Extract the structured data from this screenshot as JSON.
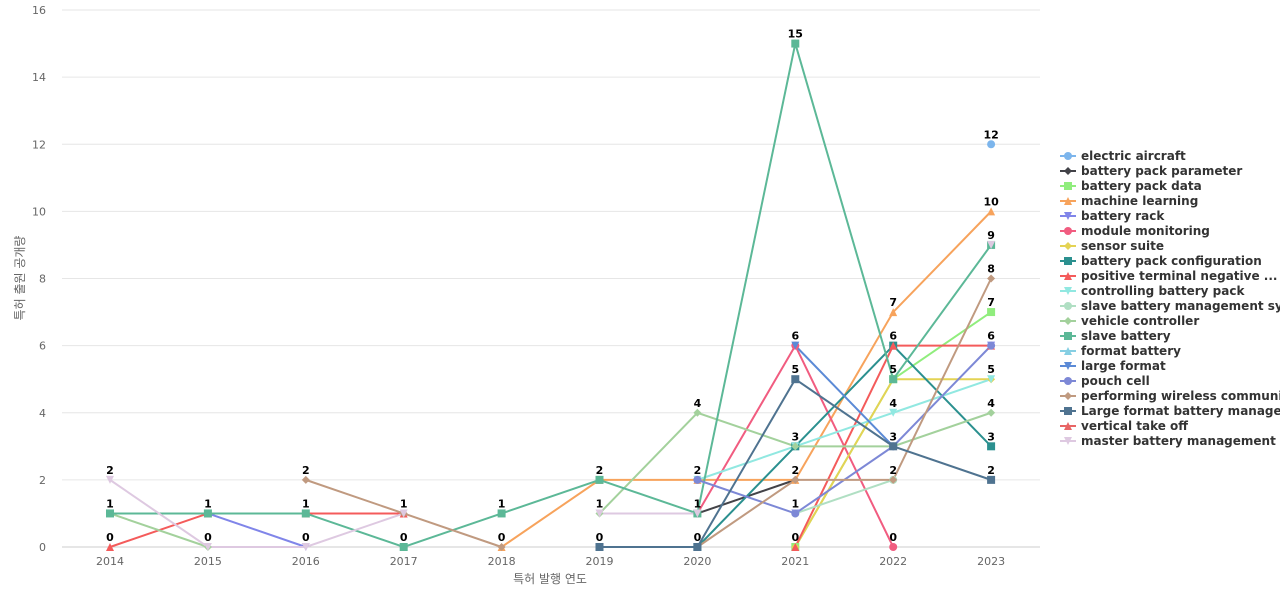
{
  "chart_data": {
    "type": "line",
    "title": "",
    "xlabel": "특허 발행 연도",
    "ylabel": "특허 출원 공개량",
    "categories": [
      "2014",
      "2015",
      "2016",
      "2017",
      "2018",
      "2019",
      "2020",
      "2021",
      "2022",
      "2023"
    ],
    "ylim": [
      0,
      16
    ],
    "yticks": [
      0,
      2,
      4,
      6,
      8,
      10,
      12,
      14,
      16
    ],
    "grid": true,
    "legend_position": "right",
    "series": [
      {
        "name": "electric aircraft",
        "color": "#7cb5ec",
        "marker": "circle",
        "values": [
          null,
          null,
          null,
          null,
          null,
          null,
          null,
          null,
          null,
          12
        ]
      },
      {
        "name": "battery pack parameter",
        "color": "#434348",
        "marker": "diamond",
        "values": [
          null,
          null,
          null,
          null,
          null,
          null,
          1,
          2,
          null,
          null
        ]
      },
      {
        "name": "battery pack data",
        "color": "#90ed7d",
        "marker": "square",
        "values": [
          null,
          null,
          null,
          null,
          null,
          null,
          null,
          0,
          5,
          7
        ]
      },
      {
        "name": "machine learning",
        "color": "#f7a35c",
        "marker": "triangle",
        "values": [
          null,
          null,
          null,
          null,
          0,
          2,
          2,
          2,
          7,
          10
        ]
      },
      {
        "name": "battery rack",
        "color": "#8085e9",
        "marker": "triangle-down",
        "values": [
          null,
          1,
          0,
          null,
          null,
          null,
          null,
          1,
          null,
          6
        ]
      },
      {
        "name": "module monitoring",
        "color": "#f15c80",
        "marker": "circle",
        "values": [
          null,
          null,
          null,
          null,
          null,
          null,
          1,
          6,
          0,
          null
        ]
      },
      {
        "name": "sensor suite",
        "color": "#e4d354",
        "marker": "diamond",
        "values": [
          null,
          null,
          null,
          null,
          null,
          null,
          null,
          0,
          5,
          5
        ]
      },
      {
        "name": "battery pack configuration",
        "color": "#2b908f",
        "marker": "square",
        "values": [
          null,
          null,
          null,
          null,
          null,
          null,
          0,
          3,
          6,
          3
        ]
      },
      {
        "name": "positive terminal negative ...",
        "color": "#f45b5b",
        "marker": "triangle",
        "values": [
          0,
          1,
          1,
          1,
          null,
          null,
          null,
          0,
          6,
          6
        ]
      },
      {
        "name": "controlling battery pack",
        "color": "#91e8e1",
        "marker": "triangle-down",
        "values": [
          null,
          null,
          null,
          null,
          null,
          null,
          2,
          3,
          4,
          5
        ]
      },
      {
        "name": "slave battery management sy...",
        "color": "#b0dfc3",
        "marker": "circle",
        "values": [
          null,
          null,
          null,
          null,
          null,
          null,
          null,
          1,
          2,
          null
        ]
      },
      {
        "name": "vehicle controller",
        "color": "#a3d19c",
        "marker": "diamond",
        "values": [
          1,
          0,
          null,
          null,
          null,
          1,
          4,
          3,
          3,
          4
        ]
      },
      {
        "name": "slave battery",
        "color": "#5cb897",
        "marker": "square",
        "values": [
          1,
          1,
          1,
          0,
          1,
          2,
          1,
          15,
          5,
          9
        ]
      },
      {
        "name": "format battery",
        "color": "#86cfe3",
        "marker": "triangle",
        "values": [
          null,
          null,
          null,
          null,
          null,
          null,
          null,
          null,
          null,
          null
        ]
      },
      {
        "name": "large format",
        "color": "#5b8ad6",
        "marker": "triangle-down",
        "values": [
          null,
          null,
          null,
          null,
          null,
          null,
          null,
          6,
          3,
          null
        ]
      },
      {
        "name": "pouch cell",
        "color": "#7d88d6",
        "marker": "circle",
        "values": [
          null,
          null,
          null,
          null,
          null,
          null,
          2,
          1,
          3,
          6
        ]
      },
      {
        "name": "performing wireless communi...",
        "color": "#c09a80",
        "marker": "diamond",
        "values": [
          null,
          null,
          2,
          1,
          0,
          null,
          0,
          2,
          2,
          8
        ]
      },
      {
        "name": "Large format battery manage...",
        "color": "#4f7390",
        "marker": "square",
        "values": [
          null,
          null,
          null,
          null,
          null,
          0,
          0,
          5,
          3,
          2
        ]
      },
      {
        "name": "vertical take off",
        "color": "#e86565",
        "marker": "triangle",
        "values": [
          null,
          null,
          null,
          null,
          null,
          null,
          null,
          null,
          null,
          null
        ]
      },
      {
        "name": "master battery management s...",
        "color": "#dec9e1",
        "marker": "triangle-down",
        "values": [
          2,
          0,
          0,
          1,
          null,
          1,
          1,
          null,
          null,
          9
        ]
      }
    ],
    "data_labels": [
      {
        "x": "2014",
        "text": "2",
        "y": 2
      },
      {
        "x": "2014",
        "text": "1",
        "y": 1
      },
      {
        "x": "2014",
        "text": "0",
        "y": 0
      },
      {
        "x": "2015",
        "text": "1",
        "y": 1
      },
      {
        "x": "2015",
        "text": "0",
        "y": 0
      },
      {
        "x": "2016",
        "text": "2",
        "y": 2
      },
      {
        "x": "2016",
        "text": "1",
        "y": 1
      },
      {
        "x": "2016",
        "text": "0",
        "y": 0
      },
      {
        "x": "2017",
        "text": "1",
        "y": 1
      },
      {
        "x": "2017",
        "text": "0",
        "y": 0
      },
      {
        "x": "2018",
        "text": "1",
        "y": 1
      },
      {
        "x": "2018",
        "text": "0",
        "y": 0
      },
      {
        "x": "2019",
        "text": "2",
        "y": 2
      },
      {
        "x": "2019",
        "text": "1",
        "y": 1
      },
      {
        "x": "2019",
        "text": "0",
        "y": 0
      },
      {
        "x": "2020",
        "text": "4",
        "y": 4
      },
      {
        "x": "2020",
        "text": "2",
        "y": 2
      },
      {
        "x": "2020",
        "text": "1",
        "y": 1
      },
      {
        "x": "2020",
        "text": "0",
        "y": 0
      },
      {
        "x": "2021",
        "text": "15",
        "y": 15
      },
      {
        "x": "2021",
        "text": "6",
        "y": 6
      },
      {
        "x": "2021",
        "text": "5",
        "y": 5
      },
      {
        "x": "2021",
        "text": "3",
        "y": 3
      },
      {
        "x": "2021",
        "text": "2",
        "y": 2
      },
      {
        "x": "2021",
        "text": "1",
        "y": 1
      },
      {
        "x": "2021",
        "text": "0",
        "y": 0
      },
      {
        "x": "2022",
        "text": "7",
        "y": 7
      },
      {
        "x": "2022",
        "text": "6",
        "y": 6
      },
      {
        "x": "2022",
        "text": "5",
        "y": 5
      },
      {
        "x": "2022",
        "text": "4",
        "y": 4
      },
      {
        "x": "2022",
        "text": "3",
        "y": 3
      },
      {
        "x": "2022",
        "text": "2",
        "y": 2
      },
      {
        "x": "2022",
        "text": "0",
        "y": 0
      },
      {
        "x": "2023",
        "text": "12",
        "y": 12
      },
      {
        "x": "2023",
        "text": "10",
        "y": 10
      },
      {
        "x": "2023",
        "text": "9",
        "y": 9
      },
      {
        "x": "2023",
        "text": "8",
        "y": 8
      },
      {
        "x": "2023",
        "text": "7",
        "y": 7
      },
      {
        "x": "2023",
        "text": "6",
        "y": 6
      },
      {
        "x": "2023",
        "text": "5",
        "y": 5
      },
      {
        "x": "2023",
        "text": "4",
        "y": 4
      },
      {
        "x": "2023",
        "text": "3",
        "y": 3
      },
      {
        "x": "2023",
        "text": "2",
        "y": 2
      }
    ]
  }
}
